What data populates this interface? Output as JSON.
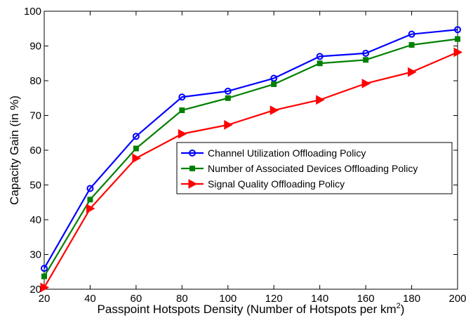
{
  "chart_data": {
    "type": "line",
    "xlabel": "Passpoint Hotspots Density (Number of Hotspots per km",
    "xlabel_superscript": "2",
    "xlabel_suffix": ")",
    "ylabel": "Capacity Gain (in %)",
    "x": [
      20,
      40,
      60,
      80,
      100,
      120,
      140,
      160,
      180,
      200
    ],
    "xlim": [
      20,
      200
    ],
    "ylim": [
      20,
      100
    ],
    "xticks": [
      20,
      40,
      60,
      80,
      100,
      120,
      140,
      160,
      180,
      200
    ],
    "yticks": [
      20,
      30,
      40,
      50,
      60,
      70,
      80,
      90,
      100
    ],
    "grid": false,
    "legend_position": "center-right",
    "series": [
      {
        "name": "Channel Utilization Offloading Policy",
        "color": "#0000ff",
        "marker": "circle",
        "values": [
          26,
          49,
          64,
          75.3,
          77,
          80.7,
          87,
          87.9,
          93.4,
          94.7
        ]
      },
      {
        "name": "Number of Associated Devices Offloading Policy",
        "color": "#008000",
        "marker": "square",
        "values": [
          23.7,
          45.8,
          60.5,
          71.5,
          75,
          79,
          85,
          86,
          90.3,
          92
        ]
      },
      {
        "name": "Signal Quality Offloading Policy",
        "color": "#ff0000",
        "marker": "triangle-right",
        "values": [
          20.5,
          43.2,
          57.7,
          64.7,
          67.3,
          71.5,
          74.5,
          79.2,
          82.5,
          88.2
        ]
      }
    ]
  }
}
